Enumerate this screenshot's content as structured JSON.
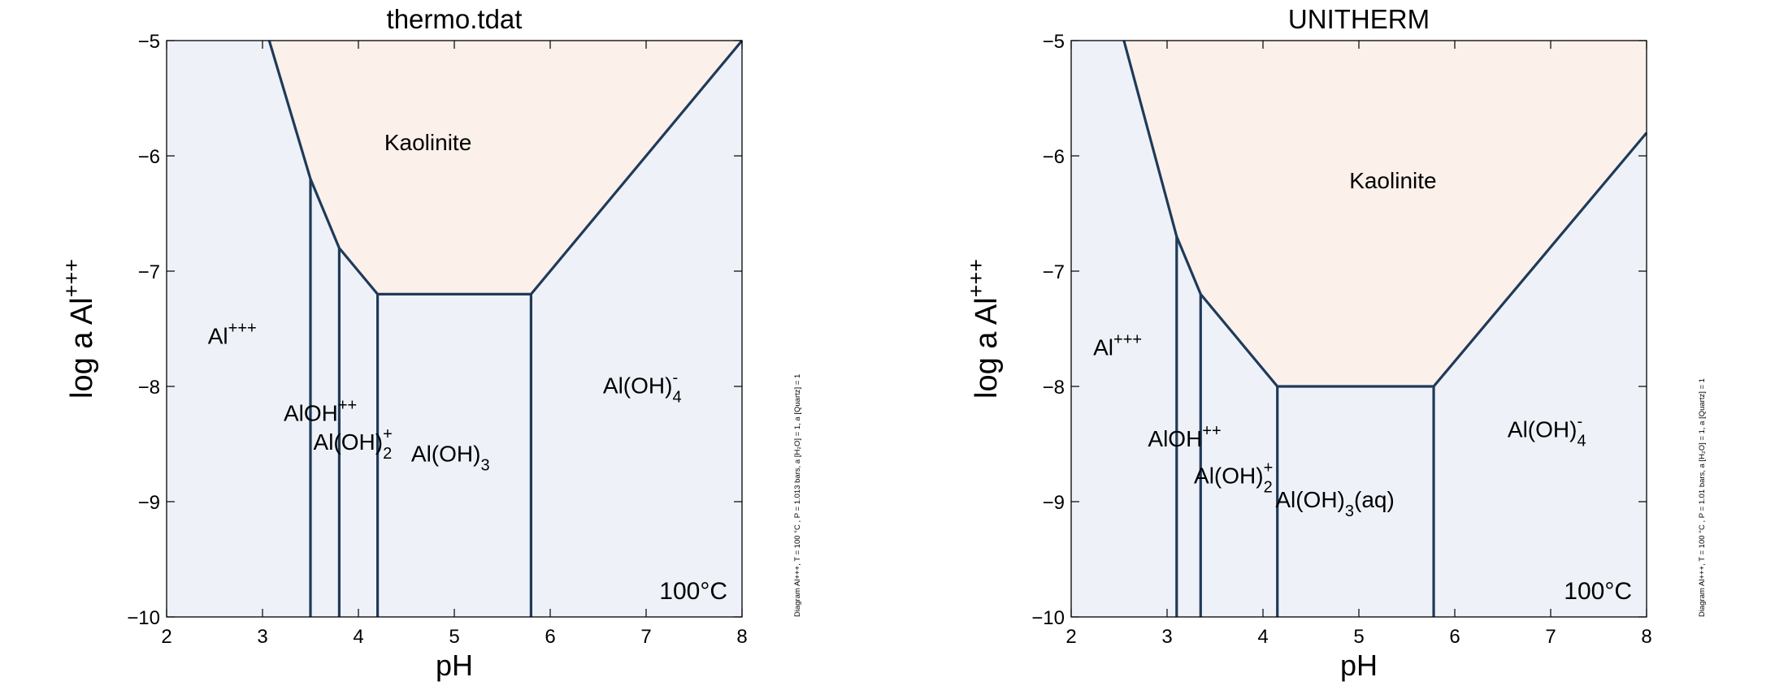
{
  "colors": {
    "aqueous_fill": "#eef2f8",
    "mineral_fill": "#fbf0ea",
    "boundary_line": "#1f3a5a",
    "axis": "#000000"
  },
  "chart_data": [
    {
      "type": "area",
      "title": "thermo.tdat",
      "xlabel": "pH",
      "ylabel": "log a Al",
      "ylabel_sup": "+++",
      "xlim": [
        2,
        8
      ],
      "ylim": [
        -10,
        -5
      ],
      "xticks": [
        "2",
        "3",
        "4",
        "5",
        "6",
        "7",
        "8"
      ],
      "yticks": [
        "−5",
        "−6",
        "−7",
        "−8",
        "−9",
        "−10"
      ],
      "temperature_label": "100°C",
      "side_note": "Diagram Al+++, T = 100 °C , P = 1.013 bars, a [H₂O] = 1, a [Quartz] = 1",
      "mineral_boundary": [
        [
          3.07,
          -5
        ],
        [
          3.5,
          -6.2
        ],
        [
          3.8,
          -6.8
        ],
        [
          4.2,
          -7.2
        ],
        [
          5.8,
          -7.2
        ],
        [
          8.0,
          -5.0
        ]
      ],
      "vertical_boundaries": [
        {
          "x": 3.5,
          "ytop": -6.2
        },
        {
          "x": 3.8,
          "ytop": -6.8
        },
        {
          "x": 4.2,
          "ytop": -7.2
        },
        {
          "x": 5.8,
          "ytop": -7.2
        }
      ],
      "fields": [
        {
          "base": "Kaolinite",
          "sub": "",
          "sup": "",
          "x": 4.27,
          "y": -5.95
        },
        {
          "base": "Al",
          "sub": "",
          "sup": "+++",
          "x": 2.43,
          "y": -7.63
        },
        {
          "base": "AlOH",
          "sub": "",
          "sup": "++",
          "x": 3.22,
          "y": -8.3
        },
        {
          "base": "Al(OH)",
          "sub": "2",
          "sup": "+",
          "x": 3.53,
          "y": -8.55
        },
        {
          "base": "Al(OH)",
          "sub": "3",
          "sup": "",
          "x": 4.55,
          "y": -8.65
        },
        {
          "base": "Al(OH)",
          "sub": "4",
          "sup": "-",
          "x": 6.55,
          "y": -8.06
        }
      ]
    },
    {
      "type": "area",
      "title": "UNITHERM",
      "xlabel": "pH",
      "ylabel": "log a Al",
      "ylabel_sup": "+++",
      "xlim": [
        2,
        8
      ],
      "ylim": [
        -10,
        -5
      ],
      "xticks": [
        "2",
        "3",
        "4",
        "5",
        "6",
        "7",
        "8"
      ],
      "yticks": [
        "−5",
        "−6",
        "−7",
        "−8",
        "−9",
        "−10"
      ],
      "temperature_label": "100°C",
      "side_note": "Diagram Al+++, T = 100 °C , P = 1.01 bars, a [H₂O] = 1, a [Quartz] = 1",
      "mineral_boundary": [
        [
          2.55,
          -5
        ],
        [
          3.1,
          -6.7
        ],
        [
          3.35,
          -7.2
        ],
        [
          4.15,
          -8.0
        ],
        [
          5.78,
          -8.0
        ],
        [
          8.0,
          -5.8
        ]
      ],
      "vertical_boundaries": [
        {
          "x": 3.1,
          "ytop": -6.7
        },
        {
          "x": 3.35,
          "ytop": -7.2
        },
        {
          "x": 4.15,
          "ytop": -8.0
        },
        {
          "x": 5.78,
          "ytop": -8.0
        }
      ],
      "fields": [
        {
          "base": "Kaolinite",
          "sub": "",
          "sup": "",
          "x": 4.9,
          "y": -6.28
        },
        {
          "base": "Al",
          "sub": "",
          "sup": "+++",
          "x": 2.23,
          "y": -7.73
        },
        {
          "base": "AlOH",
          "sub": "",
          "sup": "++",
          "x": 2.8,
          "y": -8.52
        },
        {
          "base": "Al(OH)",
          "sub": "2",
          "sup": "+",
          "x": 3.28,
          "y": -8.84
        },
        {
          "base": "Al(OH)",
          "sub": "3",
          "sup": "(aq)",
          "x": 4.13,
          "y": -9.05
        },
        {
          "base": "Al(OH)",
          "sub": "4",
          "sup": "-",
          "x": 6.55,
          "y": -8.44
        }
      ]
    }
  ]
}
